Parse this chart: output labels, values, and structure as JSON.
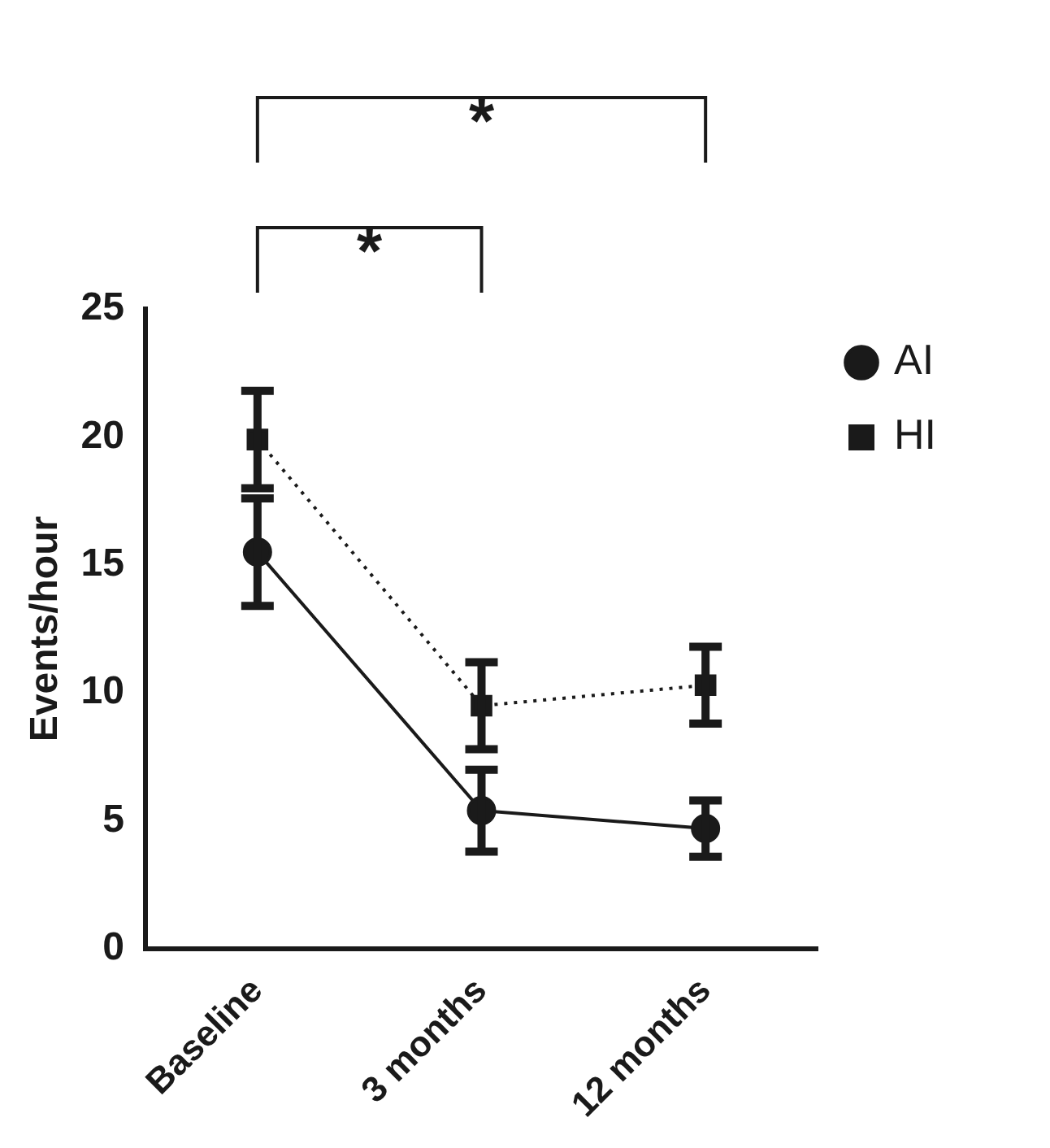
{
  "chart_data": {
    "type": "line",
    "ylabel": "Events/hour",
    "categories": [
      "Baseline",
      "3 months",
      "12 months"
    ],
    "series": [
      {
        "name": "AI",
        "color": "#1a1a1a",
        "marker": "circle",
        "line_style": "solid",
        "values": [
          15.5,
          5.4,
          4.7
        ],
        "errors": [
          2.1,
          1.6,
          1.1
        ]
      },
      {
        "name": "HI",
        "color": "#1a1a1a",
        "marker": "square",
        "line_style": "dotted",
        "values": [
          19.9,
          9.5,
          10.3
        ],
        "errors": [
          1.9,
          1.7,
          1.5
        ]
      }
    ],
    "ylim": [
      0,
      25
    ],
    "yticks": [
      0,
      5,
      10,
      15,
      20,
      25
    ],
    "grid": false,
    "legend": "top right",
    "annotations": [
      "*",
      "*"
    ]
  }
}
